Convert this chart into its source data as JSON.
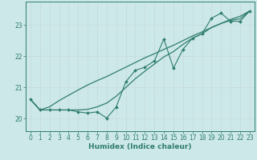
{
  "xlabel": "Humidex (Indice chaleur)",
  "bg_color": "#cde8e8",
  "grid_color": "#b8d8d8",
  "line_color": "#2e7d6e",
  "xlim": [
    -0.5,
    23.5
  ],
  "ylim": [
    19.6,
    23.75
  ],
  "yticks": [
    20,
    21,
    22,
    23
  ],
  "xticks": [
    0,
    1,
    2,
    3,
    4,
    5,
    6,
    7,
    8,
    9,
    10,
    11,
    12,
    13,
    14,
    15,
    16,
    17,
    18,
    19,
    20,
    21,
    22,
    23
  ],
  "x_data": [
    0,
    1,
    2,
    3,
    4,
    5,
    6,
    7,
    8,
    9,
    10,
    11,
    12,
    13,
    14,
    15,
    16,
    17,
    18,
    19,
    20,
    21,
    22,
    23
  ],
  "y_jagged": [
    20.62,
    20.28,
    20.28,
    20.28,
    20.28,
    20.22,
    20.18,
    20.22,
    20.02,
    20.38,
    21.18,
    21.55,
    21.65,
    21.85,
    22.55,
    21.62,
    22.22,
    22.58,
    22.72,
    23.22,
    23.38,
    23.12,
    23.12,
    23.45
  ],
  "y_smooth1": [
    20.62,
    20.28,
    20.38,
    20.58,
    20.75,
    20.92,
    21.08,
    21.22,
    21.35,
    21.5,
    21.65,
    21.8,
    21.95,
    22.08,
    22.22,
    22.35,
    22.5,
    22.65,
    22.78,
    22.92,
    23.05,
    23.18,
    23.28,
    23.45
  ],
  "y_smooth2": [
    20.62,
    20.28,
    20.28,
    20.28,
    20.28,
    20.28,
    20.3,
    20.38,
    20.5,
    20.72,
    21.0,
    21.28,
    21.52,
    21.75,
    21.98,
    22.15,
    22.38,
    22.58,
    22.72,
    22.92,
    23.05,
    23.15,
    23.2,
    23.45
  ]
}
